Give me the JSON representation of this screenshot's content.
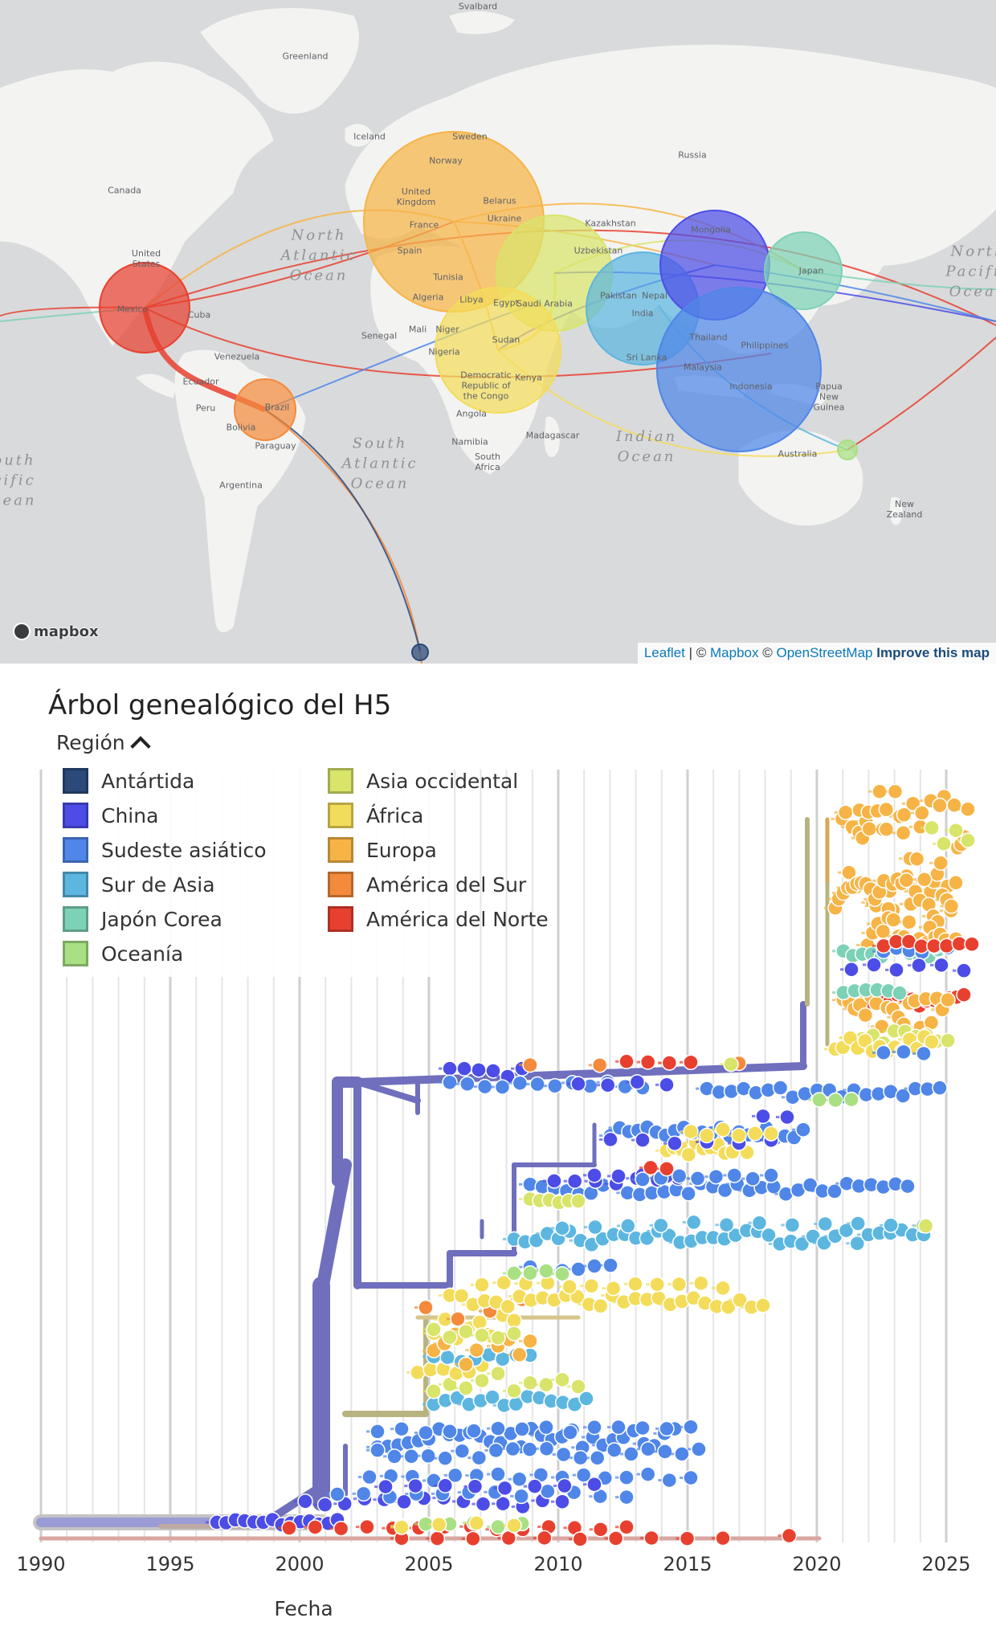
{
  "map": {
    "places": [
      {
        "name": "Svalbard",
        "key": "svalbard"
      },
      {
        "name": "Greenland",
        "key": "greenland"
      },
      {
        "name": "Iceland",
        "key": "iceland"
      },
      {
        "name": "Canada",
        "key": "canada"
      },
      {
        "name": "United States",
        "key": "us"
      },
      {
        "name": "Mexico",
        "key": "mexico"
      },
      {
        "name": "Cuba",
        "key": "cuba"
      },
      {
        "name": "Venezuela",
        "key": "venezuela"
      },
      {
        "name": "Ecuador",
        "key": "ecuador"
      },
      {
        "name": "Peru",
        "key": "peru"
      },
      {
        "name": "Brazil",
        "key": "brazil"
      },
      {
        "name": "Bolivia",
        "key": "bolivia"
      },
      {
        "name": "Paraguay",
        "key": "paraguay"
      },
      {
        "name": "Argentina",
        "key": "argentina"
      },
      {
        "name": "Sweden",
        "key": "sweden"
      },
      {
        "name": "Norway",
        "key": "norway"
      },
      {
        "name": "United Kingdom",
        "key": "uk"
      },
      {
        "name": "France",
        "key": "france"
      },
      {
        "name": "Spain",
        "key": "spain"
      },
      {
        "name": "Belarus",
        "key": "belarus"
      },
      {
        "name": "Ukraine",
        "key": "ukraine"
      },
      {
        "name": "Tunisia",
        "key": "tunisia"
      },
      {
        "name": "Algeria",
        "key": "algeria"
      },
      {
        "name": "Libya",
        "key": "libya"
      },
      {
        "name": "Egypt",
        "key": "egypt"
      },
      {
        "name": "Mali",
        "key": "mali"
      },
      {
        "name": "Niger",
        "key": "niger"
      },
      {
        "name": "Senegal",
        "key": "senegal"
      },
      {
        "name": "Nigeria",
        "key": "nigeria"
      },
      {
        "name": "Sudan",
        "key": "sudan"
      },
      {
        "name": "Democratic Republic of the Congo",
        "key": "drc"
      },
      {
        "name": "Kenya",
        "key": "kenya"
      },
      {
        "name": "Angola",
        "key": "angola"
      },
      {
        "name": "Namibia",
        "key": "namibia"
      },
      {
        "name": "South Africa",
        "key": "south_africa"
      },
      {
        "name": "Madagascar",
        "key": "madagascar"
      },
      {
        "name": "Saudi Arabia",
        "key": "saudi"
      },
      {
        "name": "Uzbekistan",
        "key": "uzbekistan"
      },
      {
        "name": "Kazakhstan",
        "key": "kazakhstan"
      },
      {
        "name": "Russia",
        "key": "russia"
      },
      {
        "name": "Mongolia",
        "key": "mongolia"
      },
      {
        "name": "Pakistan",
        "key": "pakistan"
      },
      {
        "name": "Nepal",
        "key": "nepal"
      },
      {
        "name": "India",
        "key": "india"
      },
      {
        "name": "Sri Lanka",
        "key": "srilanka"
      },
      {
        "name": "Japan",
        "key": "japan"
      },
      {
        "name": "Thailand",
        "key": "thailand"
      },
      {
        "name": "Philippines",
        "key": "philippines"
      },
      {
        "name": "Malaysia",
        "key": "malaysia"
      },
      {
        "name": "Indonesia",
        "key": "indonesia"
      },
      {
        "name": "Papua New Guinea",
        "key": "png"
      },
      {
        "name": "Australia",
        "key": "australia"
      },
      {
        "name": "New Zealand",
        "key": "nz"
      }
    ],
    "oceans": [
      {
        "name": "North\nAtlantic\nOcean",
        "key": "n_atlantic"
      },
      {
        "name": "South\nAtlantic\nOcean",
        "key": "s_atlantic"
      },
      {
        "name": "Indian\nOcean",
        "key": "indian"
      },
      {
        "name": "North\nPacific\nOcean",
        "key": "n_pacific"
      },
      {
        "name": "outh\ncific\ncean",
        "key": "s_pacific"
      }
    ],
    "logo_text": "mapbox",
    "attribution": {
      "leaflet": "Leaflet",
      "sep": " | © ",
      "mapbox": "Mapbox",
      "copy": " © ",
      "osm": "OpenStreetMap",
      "improve": "Improve this map"
    }
  },
  "tree": {
    "title": "Árbol genealógico del H5",
    "legend_title": "Región",
    "regions": [
      {
        "name": "Antártida",
        "color": "#2b4a7a"
      },
      {
        "name": "China",
        "color": "#4c4de6"
      },
      {
        "name": "Sudeste asiático",
        "color": "#4f86e8"
      },
      {
        "name": "Sur de Asia",
        "color": "#5cb6e0"
      },
      {
        "name": "Japón Corea",
        "color": "#7dd1b6"
      },
      {
        "name": "Oceanía",
        "color": "#a8e083"
      },
      {
        "name": "Asia occidental",
        "color": "#d8e46a"
      },
      {
        "name": "África",
        "color": "#f3dc5a"
      },
      {
        "name": "Europa",
        "color": "#f6b446"
      },
      {
        "name": "América del Sur",
        "color": "#f38a3c"
      },
      {
        "name": "América del Norte",
        "color": "#e8402f"
      }
    ],
    "x_ticks": [
      "1990",
      "1995",
      "2000",
      "2005",
      "2010",
      "2015",
      "2020",
      "2025"
    ],
    "x_label": "Fecha"
  }
}
